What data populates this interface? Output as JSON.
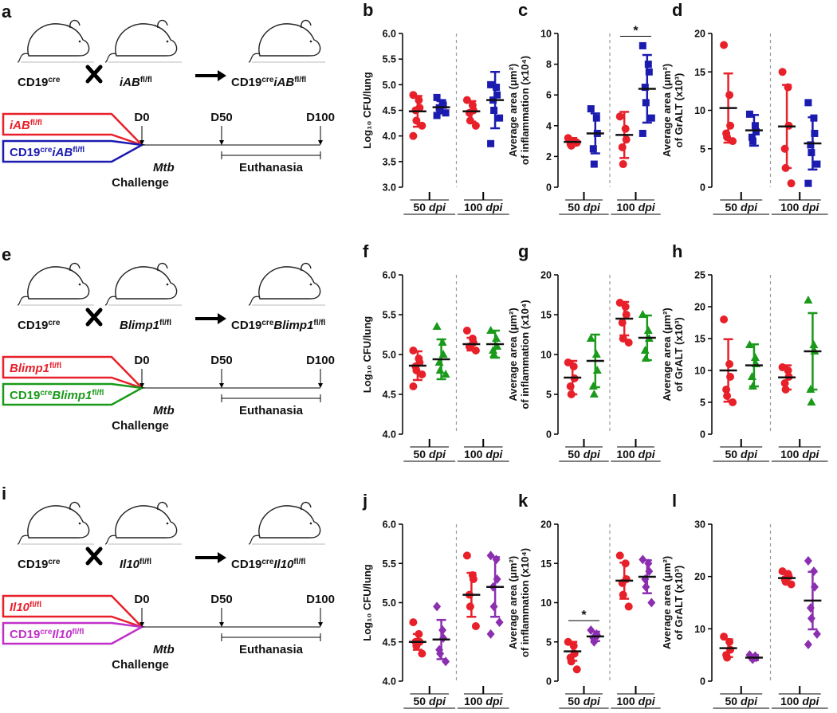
{
  "chart_data": [
    {
      "type": "dot",
      "panel": "b",
      "ylabel": [
        "Log₁₀ CFU/lung"
      ],
      "categories": [
        "50",
        "100"
      ],
      "category_unit": "dpi",
      "ylim": [
        3,
        6
      ],
      "yticks": [
        {
          "value": 3,
          "label": "3.0"
        },
        3.5,
        {
          "value": 4,
          "label": "4.0"
        },
        4.5,
        {
          "value": 5,
          "label": "5.0"
        },
        5.5,
        {
          "value": 6,
          "label": "6.0"
        }
      ],
      "series": [
        {
          "color": "#e8202a",
          "marker": "circle",
          "values": [
            [
              4.8,
              4.7,
              4.55,
              4.5,
              4.3,
              4.2,
              4.0
            ],
            [
              4.7,
              4.6,
              4.5,
              4.45,
              4.3,
              4.2
            ]
          ],
          "mean": [
            4.48,
            4.48
          ],
          "sd": [
            0.3,
            0.2
          ]
        },
        {
          "color": "#1b1bb0",
          "marker": "square",
          "values": [
            [
              4.75,
              4.65,
              4.6,
              4.55,
              4.5,
              4.45,
              4.4
            ],
            [
              5.0,
              4.95,
              4.8,
              4.7,
              4.5,
              4.35,
              3.85
            ]
          ],
          "mean": [
            4.56,
            4.7
          ],
          "sd": [
            0.12,
            0.55
          ]
        }
      ]
    },
    {
      "type": "dot",
      "panel": "c",
      "ylabel": [
        "Average area (μm²)",
        "of inflammation (x10⁴)"
      ],
      "categories": [
        "50",
        "100"
      ],
      "category_unit": "dpi",
      "ylim": [
        0,
        10
      ],
      "yticks": [
        0,
        2,
        4,
        6,
        8,
        10
      ],
      "annotations": [
        {
          "text": "*",
          "at": "100"
        }
      ],
      "series": [
        {
          "color": "#e8202a",
          "marker": "circle",
          "values": [
            [
              3.2,
              3.0,
              2.9,
              2.8,
              2.7,
              2.9
            ],
            [
              4.6,
              3.8,
              3.1,
              2.6,
              1.5
            ]
          ],
          "mean": [
            2.95,
            3.4
          ],
          "sd": [
            0.25,
            1.5
          ]
        },
        {
          "color": "#1b1bb0",
          "marker": "square",
          "values": [
            [
              5.1,
              4.5,
              3.5,
              2.5,
              1.5
            ],
            [
              9.2,
              8.0,
              7.5,
              6.5,
              5.5,
              4.5,
              3.5
            ]
          ],
          "mean": [
            3.5,
            6.4
          ],
          "sd": [
            1.3,
            2.2
          ]
        }
      ]
    },
    {
      "type": "dot",
      "panel": "d",
      "ylabel": [
        "Average area (μm²)",
        "of GrALT (x10³)"
      ],
      "categories": [
        "50",
        "100"
      ],
      "category_unit": "dpi",
      "ylim": [
        0,
        20
      ],
      "yticks": [
        0,
        5,
        10,
        15,
        20
      ],
      "series": [
        {
          "color": "#e8202a",
          "marker": "circle",
          "values": [
            [
              18.5,
              12,
              8,
              7,
              6.5,
              6
            ],
            [
              15,
              13,
              8,
              5,
              2.5,
              0.5
            ]
          ],
          "mean": [
            10.3,
            7.9
          ],
          "sd": [
            4.5,
            5.4
          ]
        },
        {
          "color": "#1b1bb0",
          "marker": "square",
          "values": [
            [
              9.5,
              8,
              7.2,
              6.5,
              6
            ],
            [
              11,
              9,
              7,
              5.5,
              4.5,
              3,
              0.5
            ]
          ],
          "mean": [
            7.4,
            5.7
          ],
          "sd": [
            2,
            3.4
          ]
        }
      ]
    },
    {
      "type": "dot",
      "panel": "f",
      "ylabel": [
        "Log₁₀ CFU/lung"
      ],
      "categories": [
        "50",
        "100"
      ],
      "category_unit": "dpi",
      "ylim": [
        4,
        6
      ],
      "yticks": [
        {
          "value": 4,
          "label": "4.0"
        },
        4.5,
        {
          "value": 5,
          "label": "5.0"
        },
        5.5,
        {
          "value": 6,
          "label": "6.0"
        }
      ],
      "series": [
        {
          "color": "#e8202a",
          "marker": "circle",
          "values": [
            [
              5.05,
              4.95,
              4.9,
              4.85,
              4.8,
              4.75,
              4.6
            ],
            [
              5.3,
              5.2,
              5.15,
              5.1,
              5.1,
              5.05
            ]
          ],
          "mean": [
            4.86,
            5.13
          ],
          "sd": [
            0.18,
            0.08
          ]
        },
        {
          "color": "#1a9a1a",
          "marker": "triangle",
          "values": [
            [
              5.35,
              5.15,
              5.0,
              4.9,
              4.8,
              4.75
            ],
            [
              5.3,
              5.2,
              5.1,
              5.05,
              5.0
            ]
          ],
          "mean": [
            4.94,
            5.13
          ],
          "sd": [
            0.25,
            0.17
          ]
        }
      ]
    },
    {
      "type": "dot",
      "panel": "g",
      "ylabel": [
        "Average area (μm²)",
        "of inflammation (x10⁴)"
      ],
      "categories": [
        "50",
        "100"
      ],
      "category_unit": "dpi",
      "ylim": [
        0,
        20
      ],
      "yticks": [
        0,
        5,
        10,
        15,
        20
      ],
      "series": [
        {
          "color": "#e8202a",
          "marker": "circle",
          "values": [
            [
              9,
              8.5,
              7,
              6,
              5
            ],
            [
              16.5,
              16,
              15,
              14,
              12,
              11.5
            ]
          ],
          "mean": [
            7.1,
            14.5
          ],
          "sd": [
            2.1,
            2.1
          ]
        },
        {
          "color": "#1a9a1a",
          "marker": "triangle",
          "values": [
            [
              12,
              10,
              8,
              6,
              5
            ],
            [
              15,
              13,
              12,
              10.5,
              9.5
            ]
          ],
          "mean": [
            9.2,
            12.1
          ],
          "sd": [
            3.3,
            2.8
          ]
        }
      ]
    },
    {
      "type": "dot",
      "panel": "h",
      "ylabel": [
        "Average area (μm²)",
        "of GrALT (x10³)"
      ],
      "categories": [
        "50",
        "100"
      ],
      "category_unit": "dpi",
      "ylim": [
        0,
        25
      ],
      "yticks": [
        0,
        5,
        10,
        15,
        20,
        25
      ],
      "series": [
        {
          "color": "#e8202a",
          "marker": "circle",
          "values": [
            [
              18,
              11,
              9,
              7,
              6,
              5
            ],
            [
              10.5,
              10,
              9,
              8,
              7
            ]
          ],
          "mean": [
            10,
            8.9
          ],
          "sd": [
            4.9,
            1.9
          ]
        },
        {
          "color": "#1a9a1a",
          "marker": "triangle",
          "values": [
            [
              14,
              12,
              11,
              9,
              7.5
            ],
            [
              21,
              14,
              13,
              7,
              5
            ]
          ],
          "mean": [
            10.8,
            13
          ],
          "sd": [
            3.3,
            6
          ]
        }
      ]
    },
    {
      "type": "dot",
      "panel": "j",
      "ylabel": [
        "Log₁₀ CFU/lung"
      ],
      "categories": [
        "50",
        "100"
      ],
      "category_unit": "dpi",
      "ylim": [
        4,
        6
      ],
      "yticks": [
        {
          "value": 4,
          "label": "4.0"
        },
        4.5,
        {
          "value": 5,
          "label": "5.0"
        },
        5.5,
        {
          "value": 6,
          "label": "6.0"
        }
      ],
      "series": [
        {
          "color": "#e8202a",
          "marker": "circle",
          "values": [
            [
              4.75,
              4.6,
              4.5,
              4.5,
              4.45,
              4.35
            ],
            [
              5.6,
              5.35,
              5.3,
              5.1,
              4.95,
              4.7
            ]
          ],
          "mean": [
            4.5,
            5.1
          ],
          "sd": [
            0.1,
            0.28
          ]
        },
        {
          "color": "#8b2fb0",
          "marker": "diamond",
          "values": [
            [
              4.95,
              4.65,
              4.55,
              4.4,
              4.35,
              4.25
            ],
            [
              5.6,
              5.55,
              5.3,
              5.2,
              4.95,
              4.75,
              4.6
            ]
          ],
          "mean": [
            4.53,
            5.2
          ],
          "sd": [
            0.25,
            0.38
          ]
        }
      ]
    },
    {
      "type": "dot",
      "panel": "k",
      "ylabel": [
        "Average area (μm²)",
        "of inflammation (x10⁴)"
      ],
      "categories": [
        "50",
        "100"
      ],
      "category_unit": "dpi",
      "ylim": [
        0,
        20
      ],
      "yticks": [
        0,
        5,
        10,
        15,
        20
      ],
      "annotations": [
        {
          "text": "*",
          "at": "50"
        }
      ],
      "series": [
        {
          "color": "#e8202a",
          "marker": "circle",
          "values": [
            [
              5,
              4.5,
              3.5,
              3,
              2.5,
              1.5
            ],
            [
              16,
              15,
              13,
              12.5,
              11,
              9.5
            ]
          ],
          "mean": [
            3.8,
            12.8
          ],
          "sd": [
            1.2,
            2.3
          ]
        },
        {
          "color": "#8b2fb0",
          "marker": "diamond",
          "values": [
            [
              6.5,
              6,
              5.8,
              5.5,
              5
            ],
            [
              15.5,
              15,
              14,
              13,
              12,
              10
            ]
          ],
          "mean": [
            5.7,
            13.3
          ],
          "sd": [
            0.6,
            2.1
          ]
        }
      ]
    },
    {
      "type": "dot",
      "panel": "l",
      "ylabel": [
        "Average area (μm²)",
        "of GrALT (x10³)"
      ],
      "categories": [
        "50",
        "100"
      ],
      "category_unit": "dpi",
      "ylim": [
        0,
        30
      ],
      "yticks": [
        0,
        10,
        20,
        30
      ],
      "series": [
        {
          "color": "#e8202a",
          "marker": "circle",
          "values": [
            [
              8.5,
              7.5,
              6,
              5,
              4.5
            ],
            [
              21,
              20.5,
              20,
              19.5,
              19,
              18.5
            ]
          ],
          "mean": [
            6.3,
            19.7
          ],
          "sd": [
            1.7,
            0.8
          ]
        },
        {
          "color": "#8b2fb0",
          "marker": "diamond",
          "values": [
            [
              5,
              4.8,
              4.5,
              4.3,
              4.2
            ],
            [
              23,
              21,
              18,
              14,
              12,
              9,
              7
            ]
          ],
          "mean": [
            4.5,
            15.4
          ],
          "sd": [
            0.5,
            5.5
          ]
        }
      ]
    }
  ],
  "schematics": [
    {
      "panel": "a",
      "mouse_left": [
        [
          "CD19",
          ""
        ],
        [
          "cre",
          "sup"
        ]
      ],
      "mouse_right": [
        [
          "iAB",
          "i"
        ],
        [
          "fl/fl",
          "sup"
        ]
      ],
      "result": [
        [
          "CD19",
          ""
        ],
        [
          "cre",
          "sup"
        ],
        [
          "iAB",
          "i"
        ],
        [
          "fl/fl",
          "sup"
        ]
      ],
      "groups": [
        {
          "label": [
            [
              "iAB",
              "i"
            ],
            [
              "fl/fl",
              "sup"
            ]
          ],
          "color": "#e8202a"
        },
        {
          "label": [
            [
              "CD19",
              ""
            ],
            [
              "cre",
              "sup"
            ],
            [
              "iAB",
              "i"
            ],
            [
              "fl/fl",
              "sup"
            ]
          ],
          "color": "#1b1bb0"
        }
      ],
      "timepoints": [
        "D0",
        "D50",
        "D100"
      ],
      "agent": "Mtb",
      "event": "Challenge",
      "endpoint": "Euthanasia"
    },
    {
      "panel": "e",
      "mouse_left": [
        [
          "CD19",
          ""
        ],
        [
          "cre",
          "sup"
        ]
      ],
      "mouse_right": [
        [
          "Blimp1",
          "i"
        ],
        [
          "fl/fl",
          "sup"
        ]
      ],
      "result": [
        [
          "CD19",
          ""
        ],
        [
          "cre",
          "sup"
        ],
        [
          "Blimp1",
          "i"
        ],
        [
          "fl/fl",
          "sup"
        ]
      ],
      "groups": [
        {
          "label": [
            [
              "Blimp1",
              "i"
            ],
            [
              "fl/fl",
              "sup"
            ]
          ],
          "color": "#e8202a"
        },
        {
          "label": [
            [
              "CD19",
              ""
            ],
            [
              "cre",
              "sup"
            ],
            [
              "Blimp1",
              "i"
            ],
            [
              "fl/fl",
              "sup"
            ]
          ],
          "color": "#1a9a1a"
        }
      ],
      "timepoints": [
        "D0",
        "D50",
        "D100"
      ],
      "agent": "Mtb",
      "event": "Challenge",
      "endpoint": "Euthanasia"
    },
    {
      "panel": "i",
      "mouse_left": [
        [
          "CD19",
          ""
        ],
        [
          "cre",
          "sup"
        ]
      ],
      "mouse_right": [
        [
          "Il10",
          "i"
        ],
        [
          "fl/fl",
          "sup"
        ]
      ],
      "result": [
        [
          "CD19",
          ""
        ],
        [
          "cre",
          "sup"
        ],
        [
          "Il10",
          "i"
        ],
        [
          "fl/fl",
          "sup"
        ]
      ],
      "groups": [
        {
          "label": [
            [
              "Il10",
              "i"
            ],
            [
              "fl/fl",
              "sup"
            ]
          ],
          "color": "#e8202a"
        },
        {
          "label": [
            [
              "CD19",
              ""
            ],
            [
              "cre",
              "sup"
            ],
            [
              "Il10",
              "i"
            ],
            [
              "fl/fl",
              "sup"
            ]
          ],
          "color": "#c030c8"
        }
      ],
      "timepoints": [
        "D0",
        "D50",
        "D100"
      ],
      "agent": "Mtb",
      "event": "Challenge",
      "endpoint": "Euthanasia"
    }
  ]
}
